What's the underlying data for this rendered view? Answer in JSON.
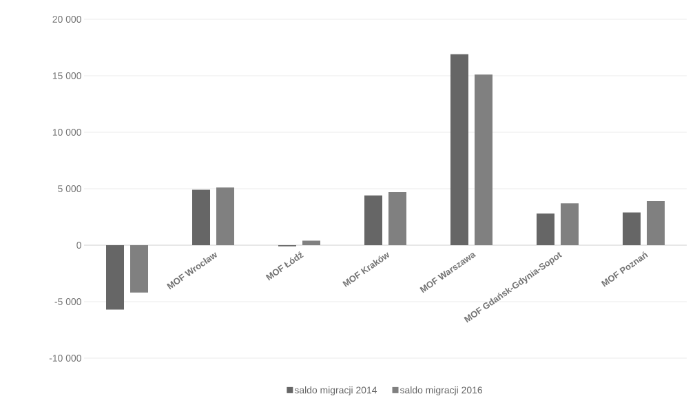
{
  "chart_data": {
    "type": "bar",
    "categories": [
      null,
      "MOF Wrocław",
      "MOF Łódź",
      "MOF Kraków",
      "MOF Warszawa",
      "MOF Gdańsk-Gdynia-Sopot",
      "MOF Poznań"
    ],
    "series": [
      {
        "name": "saldo migracji 2014",
        "color": "#666666",
        "values": [
          -5700,
          4900,
          -100,
          4400,
          16900,
          2800,
          2900
        ]
      },
      {
        "name": "saldo migracji 2016",
        "color": "#808080",
        "values": [
          -4200,
          5100,
          400,
          4700,
          15100,
          3700,
          3900
        ]
      }
    ],
    "ylim": [
      -10000,
      20000
    ],
    "yticks": [
      {
        "value": -10000,
        "label": "-10 000"
      },
      {
        "value": -5000,
        "label": "-5 000"
      },
      {
        "value": 0,
        "label": "0"
      },
      {
        "value": 5000,
        "label": "5 000"
      },
      {
        "value": 10000,
        "label": "10 000"
      },
      {
        "value": 15000,
        "label": "15 000"
      },
      {
        "value": 20000,
        "label": "20 000"
      }
    ],
    "grid": "y",
    "legend": "bottom"
  }
}
